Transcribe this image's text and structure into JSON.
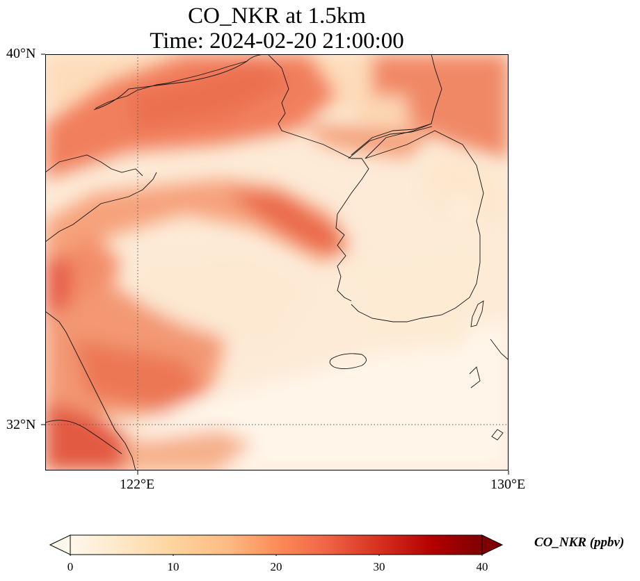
{
  "title": {
    "line1": "CO_NKR at 1.5km",
    "line2": "Time: 2024-02-20 21:00:00"
  },
  "map": {
    "lat_range": [
      31.2,
      40.0
    ],
    "lon_range": [
      120.4,
      130.0
    ],
    "lat_ticks": [
      "40°N",
      "32°N"
    ],
    "lon_ticks": [
      "122°E",
      "130°E"
    ],
    "gridlines": "dotted at 122°E and 32°N",
    "colormap": "OrRd"
  },
  "colorbar": {
    "label": "CO_NKR (ppbv)",
    "ticks": [
      "0",
      "10",
      "20",
      "30",
      "40"
    ],
    "min": 0,
    "max": 40,
    "extend": "both"
  }
}
